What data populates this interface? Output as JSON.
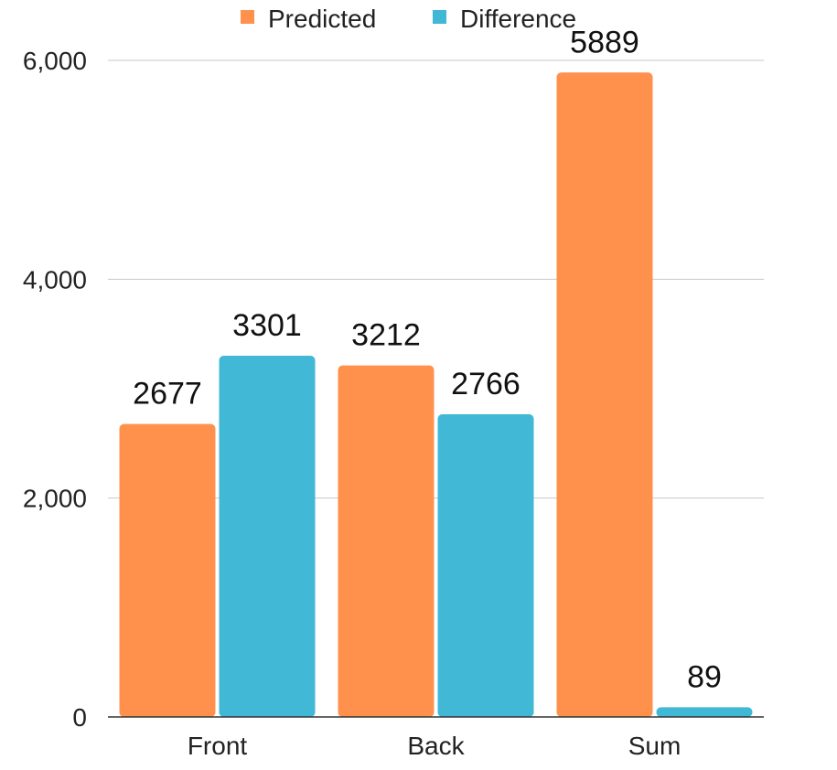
{
  "chart_data": {
    "type": "bar",
    "categories": [
      "Front",
      "Back",
      "Sum"
    ],
    "series": [
      {
        "name": "Predicted",
        "values": [
          2677,
          3212,
          5889
        ],
        "color": "#FF914D"
      },
      {
        "name": "Difference",
        "values": [
          3301,
          2766,
          89
        ],
        "color": "#41B8D5"
      }
    ],
    "yticks": [
      0,
      2000,
      4000,
      6000
    ],
    "ytick_labels": [
      "0",
      "2,000",
      "4,000",
      "6,000"
    ],
    "ylim": [
      0,
      6000
    ],
    "grid": true,
    "legend": "top-center",
    "title": "",
    "xlabel": "",
    "ylabel": ""
  },
  "colors": {
    "grid": "#C8C8C8",
    "axis": "#333333"
  }
}
